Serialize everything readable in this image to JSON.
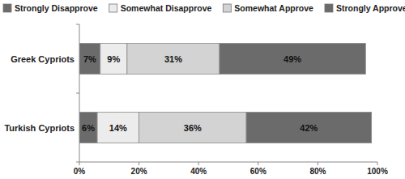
{
  "chart_data": {
    "type": "bar",
    "orientation": "horizontal",
    "stacked": true,
    "data_labels": true,
    "grid": false,
    "legend": "top",
    "categories": [
      "Greek Cypriots",
      "Turkish Cypriots"
    ],
    "series": [
      {
        "name": "Strongly Disapprove",
        "color": "#6b6b6b",
        "values": [
          7,
          6
        ],
        "value_labels": [
          "7%",
          "6%"
        ]
      },
      {
        "name": "Somewhat Disapprove",
        "color": "#ececec",
        "values": [
          9,
          14
        ],
        "value_labels": [
          "9%",
          "14%"
        ]
      },
      {
        "name": "Somewhat Approve",
        "color": "#d3d3d3",
        "values": [
          31,
          36
        ],
        "value_labels": [
          "31%",
          "36%"
        ]
      },
      {
        "name": "Strongly Approve",
        "color": "#6b6b6b",
        "values": [
          49,
          42
        ],
        "value_labels": [
          "49%",
          "42%"
        ]
      }
    ],
    "xlim": [
      0,
      100
    ],
    "xticks": [
      {
        "value": 0,
        "label": "0%"
      },
      {
        "value": 20,
        "label": "20%"
      },
      {
        "value": 40,
        "label": "40%"
      },
      {
        "value": 60,
        "label": "60%"
      },
      {
        "value": 80,
        "label": "80%"
      },
      {
        "value": 100,
        "label": "100%"
      }
    ]
  }
}
